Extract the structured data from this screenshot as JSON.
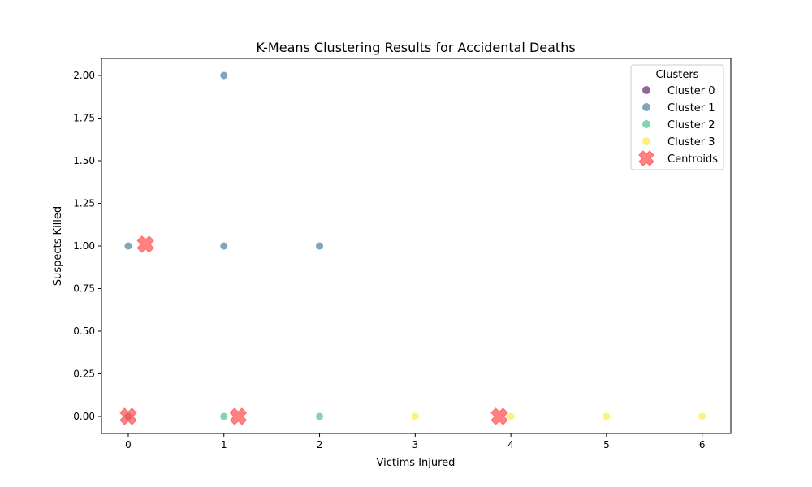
{
  "chart_data": {
    "type": "scatter",
    "title": "K-Means Clustering Results for Accidental Deaths",
    "xlabel": "Victims Injured",
    "ylabel": "Suspects Killed",
    "xlim": [
      -0.28,
      6.3
    ],
    "ylim": [
      -0.1,
      2.1
    ],
    "xticks": [
      0,
      1,
      2,
      3,
      4,
      5,
      6
    ],
    "xtick_labels": [
      "0",
      "1",
      "2",
      "3",
      "4",
      "5",
      "6"
    ],
    "yticks": [
      0.0,
      0.25,
      0.5,
      0.75,
      1.0,
      1.25,
      1.5,
      1.75,
      2.0
    ],
    "ytick_labels": [
      "0.00",
      "0.25",
      "0.50",
      "0.75",
      "1.00",
      "1.25",
      "1.50",
      "1.75",
      "2.00"
    ],
    "grid": false,
    "legend": {
      "title": "Clusters",
      "placement": "top-right",
      "entries": [
        "Cluster 0",
        "Cluster 1",
        "Cluster 2",
        "Cluster 3",
        "Centroids"
      ]
    },
    "series": [
      {
        "name": "Cluster 0",
        "color": "#440154",
        "points": [
          [
            0,
            0
          ],
          [
            0,
            0
          ]
        ]
      },
      {
        "name": "Cluster 1",
        "color": "#31688e",
        "points": [
          [
            0,
            1
          ],
          [
            1,
            1
          ],
          [
            1,
            2
          ],
          [
            2,
            1
          ]
        ]
      },
      {
        "name": "Cluster 2",
        "color": "#35b779",
        "points": [
          [
            1,
            0
          ],
          [
            2,
            0
          ]
        ]
      },
      {
        "name": "Cluster 3",
        "color": "#fde725",
        "points": [
          [
            3,
            0
          ],
          [
            4,
            0
          ],
          [
            5,
            0
          ],
          [
            6,
            0
          ]
        ]
      }
    ],
    "centroids": {
      "name": "Centroids",
      "color": "#ff6b6b",
      "points": [
        [
          0,
          0
        ],
        [
          0.18,
          1.01
        ],
        [
          1.15,
          0
        ],
        [
          3.88,
          0
        ]
      ]
    }
  }
}
